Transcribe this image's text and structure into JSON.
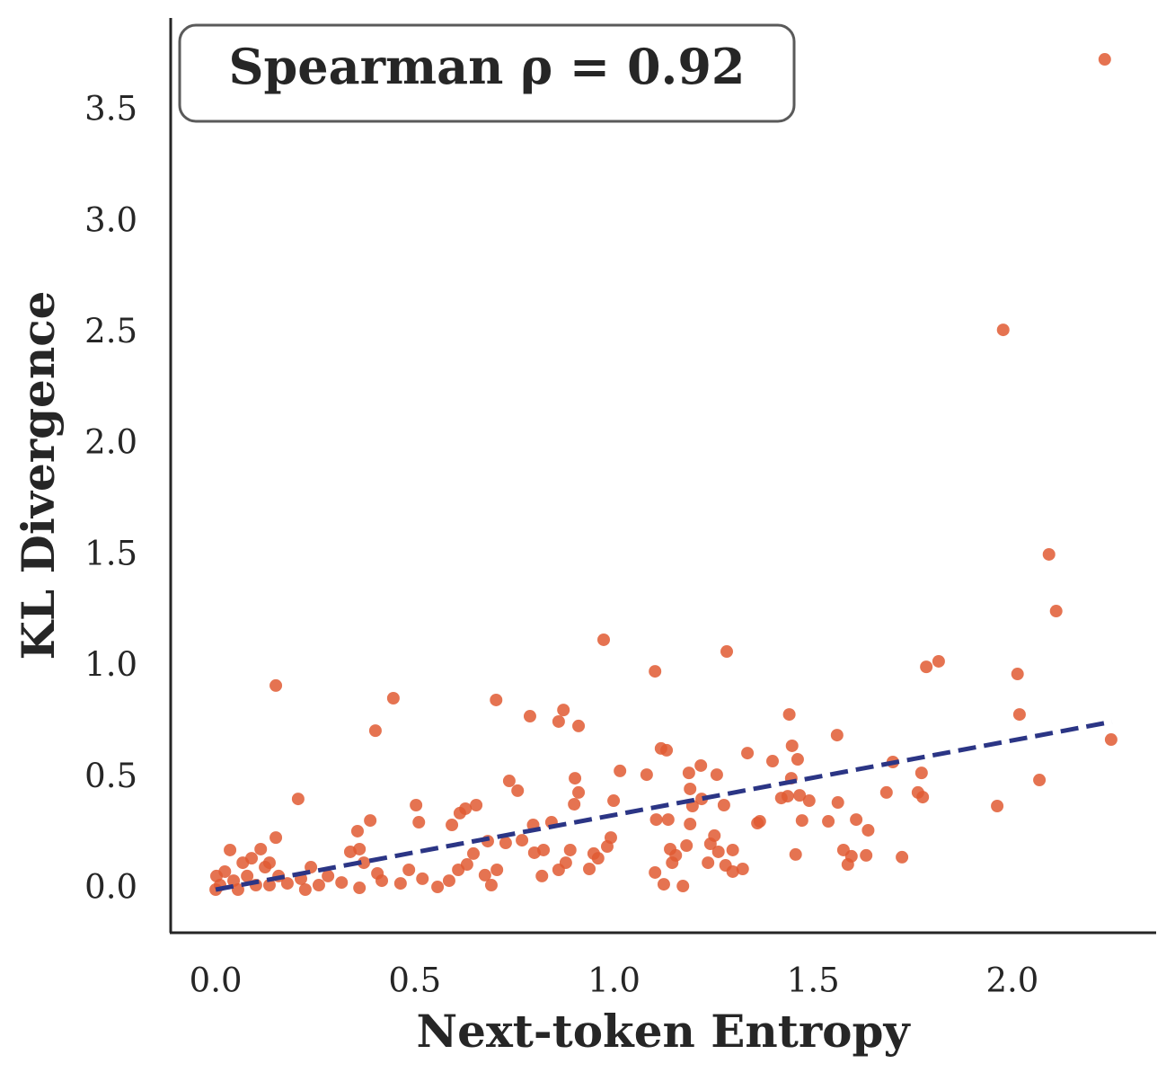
{
  "chart_data": {
    "type": "scatter",
    "x_label": "Next-token Entropy",
    "y_label": "KL Divergence",
    "annotation": "Spearman ρ = 0.92",
    "color": "#e05a33",
    "xlim": [
      -0.113,
      2.361
    ],
    "ylim": [
      -0.194,
      3.921
    ],
    "xticks": [
      {
        "value": 0,
        "label": "0.0"
      },
      0.5,
      {
        "value": 1,
        "label": "1.0"
      },
      1.5,
      {
        "value": 2,
        "label": "2.0"
      }
    ],
    "yticks": [
      {
        "value": 0,
        "label": "0.0"
      },
      0.5,
      {
        "value": 1,
        "label": "1.0"
      },
      1.5,
      {
        "value": 2,
        "label": "2.0"
      },
      2.5,
      {
        "value": 3,
        "label": "3.0"
      },
      3.5
    ],
    "x": [
      2.232,
      1.977,
      2.092,
      2.11,
      2.248,
      2.013,
      2.018,
      2.068,
      1.962,
      1.784,
      1.815,
      1.772,
      1.775,
      1.763,
      1.7,
      1.684,
      1.723,
      1.56,
      1.44,
      1.447,
      1.461,
      1.398,
      1.445,
      1.436,
      1.466,
      1.49,
      1.472,
      1.456,
      1.42,
      1.366,
      1.335,
      1.283,
      1.258,
      1.218,
      1.188,
      1.191,
      1.22,
      1.276,
      1.197,
      1.191,
      1.182,
      1.132,
      1.118,
      1.103,
      1.082,
      1.136,
      1.106,
      1.141,
      1.155,
      1.146,
      1.103,
      1.125,
      1.173,
      1.242,
      1.252,
      1.236,
      1.262,
      1.28,
      1.298,
      1.298,
      1.323,
      1.36,
      1.538,
      1.562,
      1.576,
      1.587,
      1.596,
      1.608,
      1.633,
      1.638,
      0.974,
      1.015,
      0.999,
      0.992,
      0.983,
      0.96,
      0.949,
      0.938,
      0.911,
      0.873,
      0.861,
      0.902,
      0.911,
      0.9,
      0.89,
      0.879,
      0.861,
      0.843,
      0.823,
      0.819,
      0.797,
      0.789,
      0.8,
      0.769,
      0.758,
      0.737,
      0.728,
      0.704,
      0.706,
      0.683,
      0.692,
      0.676,
      0.654,
      0.627,
      0.613,
      0.593,
      0.647,
      0.631,
      0.609,
      0.586,
      0.557,
      0.519,
      0.503,
      0.51,
      0.485,
      0.464,
      0.446,
      0.401,
      0.388,
      0.356,
      0.361,
      0.338,
      0.372,
      0.406,
      0.417,
      0.316,
      0.361,
      0.207,
      0.151,
      0.151,
      0.239,
      0.135,
      0.113,
      0.124,
      0.09,
      0.036,
      0.068,
      0.023,
      0.011,
      0.045,
      0.079,
      0.101,
      0.158,
      0.18,
      0.214,
      0.259,
      0.282,
      0.0,
      0.002,
      0.056,
      0.135,
      0.225
    ],
    "values": [
      3.735,
      2.518,
      1.508,
      1.253,
      0.675,
      0.97,
      0.788,
      0.493,
      0.376,
      1.002,
      1.027,
      0.525,
      0.416,
      0.437,
      0.574,
      0.437,
      0.146,
      0.695,
      0.788,
      0.647,
      0.586,
      0.578,
      0.501,
      0.42,
      0.424,
      0.4,
      0.311,
      0.158,
      0.412,
      0.307,
      0.614,
      1.071,
      0.517,
      0.558,
      0.525,
      0.453,
      0.408,
      0.38,
      0.376,
      0.295,
      0.198,
      0.627,
      0.635,
      0.982,
      0.517,
      0.315,
      0.315,
      0.182,
      0.154,
      0.121,
      0.077,
      0.024,
      0.016,
      0.206,
      0.243,
      0.121,
      0.17,
      0.109,
      0.178,
      0.081,
      0.093,
      0.299,
      0.307,
      0.392,
      0.178,
      0.113,
      0.15,
      0.315,
      0.154,
      0.267,
      1.124,
      0.534,
      0.4,
      0.234,
      0.194,
      0.141,
      0.162,
      0.093,
      0.736,
      0.808,
      0.756,
      0.501,
      0.437,
      0.384,
      0.178,
      0.121,
      0.089,
      0.303,
      0.178,
      0.061,
      0.291,
      0.78,
      0.166,
      0.222,
      0.445,
      0.489,
      0.21,
      0.853,
      0.089,
      0.218,
      0.02,
      0.065,
      0.38,
      0.364,
      0.344,
      0.291,
      0.162,
      0.113,
      0.089,
      0.04,
      0.012,
      0.049,
      0.38,
      0.303,
      0.089,
      0.028,
      0.861,
      0.715,
      0.311,
      0.263,
      0.182,
      0.17,
      0.121,
      0.073,
      0.04,
      0.032,
      0.008,
      0.408,
      0.918,
      0.234,
      0.101,
      0.121,
      0.182,
      0.101,
      0.141,
      0.178,
      0.121,
      0.081,
      0.02,
      0.04,
      0.061,
      0.02,
      0.061,
      0.028,
      0.049,
      0.02,
      0.061,
      0.0,
      0.061,
      0.0,
      0.02,
      0.0
    ],
    "trend_line": {
      "color": "#2b3585",
      "x": [
        0,
        2.25
      ],
      "values": [
        0,
        0.755
      ]
    }
  }
}
